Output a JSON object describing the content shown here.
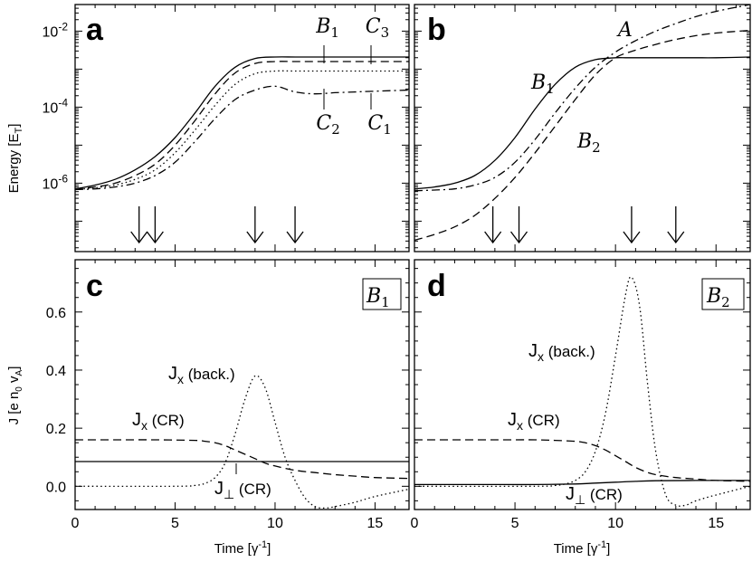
{
  "chart_data": [
    {
      "panel": "a",
      "type": "line",
      "ylabel": "Energy [E_T]",
      "yscale": "log",
      "ylim_log10": [
        -7.8,
        -1.3
      ],
      "xlim": [
        0,
        16.7
      ],
      "yticks": [
        {
          "v": -2,
          "base": "10",
          "exp": "-2"
        },
        {
          "v": -4,
          "base": "10",
          "exp": "-4"
        },
        {
          "v": -6,
          "base": "10",
          "exp": "-6"
        }
      ],
      "arrows_x": [
        3.2,
        4.0,
        9.0,
        11.0
      ],
      "series": [
        {
          "label": "B1",
          "style": "solid",
          "x": [
            0,
            1,
            2,
            3,
            4,
            5,
            6,
            7,
            8,
            9,
            10,
            11,
            12,
            13,
            14,
            15,
            16.7
          ],
          "log10y": [
            -6.15,
            -6.05,
            -5.9,
            -5.65,
            -5.3,
            -4.8,
            -4.15,
            -3.45,
            -2.95,
            -2.72,
            -2.68,
            -2.68,
            -2.68,
            -2.68,
            -2.68,
            -2.68,
            -2.68
          ]
        },
        {
          "label": "C3",
          "style": "dashed",
          "x": [
            0,
            1,
            2,
            3,
            4,
            5,
            6,
            7,
            8,
            9,
            10,
            11,
            12,
            13,
            14,
            15,
            16.7
          ],
          "log10y": [
            -6.15,
            -6.1,
            -6.0,
            -5.8,
            -5.5,
            -5.0,
            -4.35,
            -3.65,
            -3.1,
            -2.85,
            -2.8,
            -2.8,
            -2.8,
            -2.8,
            -2.8,
            -2.8,
            -2.8
          ]
        },
        {
          "label": "C2",
          "style": "dotted",
          "x": [
            0,
            1,
            2,
            3,
            4,
            5,
            6,
            7,
            8,
            9,
            10,
            11,
            12,
            13,
            14,
            15,
            16.7
          ],
          "log10y": [
            -6.17,
            -6.12,
            -6.05,
            -5.9,
            -5.65,
            -5.2,
            -4.6,
            -3.95,
            -3.4,
            -3.12,
            -3.05,
            -3.05,
            -3.05,
            -3.05,
            -3.05,
            -3.05,
            -3.05
          ]
        },
        {
          "label": "C1",
          "style": "dashdot",
          "x": [
            0,
            1,
            2,
            3,
            4,
            5,
            6,
            7,
            8,
            9,
            10,
            11,
            12,
            13,
            14,
            15,
            16.7
          ],
          "log10y": [
            -6.17,
            -6.15,
            -6.1,
            -6.0,
            -5.8,
            -5.45,
            -4.9,
            -4.3,
            -3.8,
            -3.55,
            -3.45,
            -3.6,
            -3.65,
            -3.62,
            -3.6,
            -3.58,
            -3.55
          ]
        }
      ],
      "annotations": [
        {
          "text": "B1",
          "x": 12.5,
          "log10y": -1.75
        },
        {
          "text": "C3",
          "x": 14.7,
          "log10y": -1.75
        },
        {
          "text": "C2",
          "x": 12.6,
          "log10y": -4.45
        },
        {
          "text": "C1",
          "x": 15.0,
          "log10y": -4.45
        }
      ]
    },
    {
      "panel": "b",
      "type": "line",
      "yscale": "log",
      "ylim_log10": [
        -7.8,
        -1.3
      ],
      "xlim": [
        0,
        16.7
      ],
      "arrows_x": [
        3.9,
        5.2,
        10.8,
        13.0
      ],
      "series": [
        {
          "label": "B1",
          "style": "solid",
          "x": [
            0,
            1,
            2,
            3,
            4,
            5,
            6,
            7,
            8,
            9,
            10,
            10.5,
            11,
            12,
            13,
            14,
            15,
            16.7
          ],
          "log10y": [
            -6.15,
            -6.1,
            -6.0,
            -5.8,
            -5.4,
            -4.8,
            -4.05,
            -3.4,
            -2.95,
            -2.75,
            -2.7,
            -2.7,
            -2.7,
            -2.7,
            -2.7,
            -2.7,
            -2.7,
            -2.68
          ]
        },
        {
          "label": "A",
          "style": "dashdot",
          "x": [
            0,
            1,
            2,
            3,
            4,
            5,
            6,
            7,
            8,
            9,
            10,
            11,
            12,
            13,
            14,
            15,
            16.7
          ],
          "log10y": [
            -6.2,
            -6.18,
            -6.15,
            -6.05,
            -5.85,
            -5.45,
            -4.85,
            -4.15,
            -3.5,
            -2.95,
            -2.55,
            -2.25,
            -2.0,
            -1.8,
            -1.62,
            -1.48,
            -1.3
          ]
        },
        {
          "label": "B2",
          "style": "dashed",
          "x": [
            0,
            1,
            2,
            3,
            4,
            5,
            6,
            7,
            8,
            9,
            10,
            11,
            12,
            13,
            14,
            15,
            16.7
          ],
          "log10y": [
            -7.5,
            -7.35,
            -7.15,
            -6.85,
            -6.4,
            -5.85,
            -5.2,
            -4.5,
            -3.8,
            -3.15,
            -2.7,
            -2.5,
            -2.35,
            -2.22,
            -2.12,
            -2.05,
            -1.98
          ]
        }
      ],
      "annotations": [
        {
          "text": "A",
          "x": 11.2,
          "log10y": -1.65
        },
        {
          "text": "B1",
          "x": 6.2,
          "log10y": -3.55
        },
        {
          "text": "B2",
          "x": 8.8,
          "log10y": -5.2
        }
      ]
    },
    {
      "panel": "c",
      "type": "line",
      "box_label": "B1",
      "ylabel": "J [e n0 vA]",
      "xlabel": "Time [γ-1]",
      "xlim": [
        0,
        16.7
      ],
      "ylim": [
        -0.08,
        0.78
      ],
      "xticks": [
        0,
        5,
        10,
        15
      ],
      "yticks": [
        0.0,
        0.2,
        0.4,
        0.6
      ],
      "series": [
        {
          "label": "Jx (CR)",
          "style": "dashed",
          "x": [
            0,
            2,
            4,
            6,
            6.5,
            7,
            7.5,
            8,
            8.5,
            9,
            9.5,
            10,
            11,
            12,
            13,
            14,
            15,
            16.7
          ],
          "y": [
            0.16,
            0.16,
            0.16,
            0.158,
            0.155,
            0.15,
            0.14,
            0.125,
            0.11,
            0.095,
            0.08,
            0.07,
            0.055,
            0.047,
            0.04,
            0.035,
            0.03,
            0.027
          ]
        },
        {
          "label": "Jx (back.)",
          "style": "dotted",
          "x": [
            0,
            5,
            6,
            6.5,
            7,
            7.5,
            8,
            8.5,
            9,
            9.5,
            10,
            10.5,
            11,
            11.5,
            12,
            12.5,
            13,
            14,
            15,
            16.7
          ],
          "y": [
            0.0,
            0.0,
            0.003,
            0.01,
            0.03,
            0.08,
            0.18,
            0.3,
            0.38,
            0.34,
            0.22,
            0.1,
            0.02,
            -0.04,
            -0.07,
            -0.075,
            -0.07,
            -0.055,
            -0.035,
            -0.01
          ]
        },
        {
          "label": "J⊥ (CR)",
          "style": "solid",
          "x": [
            0,
            16.7
          ],
          "y": [
            0.085,
            0.085
          ]
        }
      ],
      "labels": {
        "jx_back": {
          "main": "J",
          "sub": "x",
          "suffix": " (back.)"
        },
        "jx_cr": {
          "main": "J",
          "sub": "x",
          "suffix": " (CR)"
        },
        "jperp_cr": {
          "main": "J",
          "sub": "⊥",
          "suffix": " (CR)"
        }
      }
    },
    {
      "panel": "d",
      "type": "line",
      "box_label": "B2",
      "xlabel": "Time [γ-1]",
      "xlim": [
        0,
        16.7
      ],
      "ylim": [
        -0.08,
        0.78
      ],
      "xticks": [
        0,
        5,
        10,
        15
      ],
      "series": [
        {
          "label": "Jx (CR)",
          "style": "dashed",
          "x": [
            0,
            2,
            4,
            6,
            7,
            8,
            8.5,
            9,
            9.5,
            10,
            10.5,
            11,
            11.5,
            12,
            13,
            14,
            15,
            16.7
          ],
          "y": [
            0.16,
            0.16,
            0.16,
            0.16,
            0.158,
            0.155,
            0.15,
            0.14,
            0.125,
            0.105,
            0.085,
            0.065,
            0.05,
            0.04,
            0.03,
            0.025,
            0.02,
            0.017
          ]
        },
        {
          "label": "Jx (back.)",
          "style": "dotted",
          "x": [
            0,
            6,
            7,
            7.5,
            8,
            8.5,
            9,
            9.5,
            10,
            10.5,
            10.8,
            11.2,
            11.6,
            12,
            12.5,
            13,
            13.5,
            14,
            15,
            16.7
          ],
          "y": [
            0.0,
            0.0,
            0.003,
            0.008,
            0.02,
            0.05,
            0.12,
            0.25,
            0.45,
            0.66,
            0.72,
            0.62,
            0.35,
            0.12,
            -0.03,
            -0.065,
            -0.065,
            -0.05,
            -0.03,
            0.0
          ]
        },
        {
          "label": "J⊥ (CR)",
          "style": "solid",
          "x": [
            0,
            4,
            6,
            8,
            9,
            10,
            11,
            12,
            14,
            16.7
          ],
          "y": [
            0.006,
            0.006,
            0.006,
            0.008,
            0.011,
            0.014,
            0.017,
            0.019,
            0.02,
            0.02
          ]
        }
      ],
      "labels": {
        "jx_back": {
          "main": "J",
          "sub": "x",
          "suffix": " (back.)"
        },
        "jx_cr": {
          "main": "J",
          "sub": "x",
          "suffix": " (CR)"
        },
        "jperp_cr": {
          "main": "J",
          "sub": "⊥",
          "suffix": " (CR)"
        }
      }
    }
  ],
  "text": {
    "panel_a": "a",
    "panel_b": "b",
    "panel_c": "c",
    "panel_d": "d",
    "energy_ylabel_main": "Energy [E",
    "energy_ylabel_sub": "T",
    "energy_ylabel_end": "]",
    "j_ylabel_main": "J [e n",
    "j_ylabel_sub0": "0",
    "j_ylabel_mid": " v",
    "j_ylabel_subA": "A",
    "j_ylabel_end": "]",
    "time_main": "Time [γ",
    "time_sup": "-1",
    "time_end": "]",
    "lab_B": "B",
    "lab_C": "C",
    "lab_A": "A",
    "sub_1": "1",
    "sub_2": "2",
    "sub_3": "3"
  }
}
